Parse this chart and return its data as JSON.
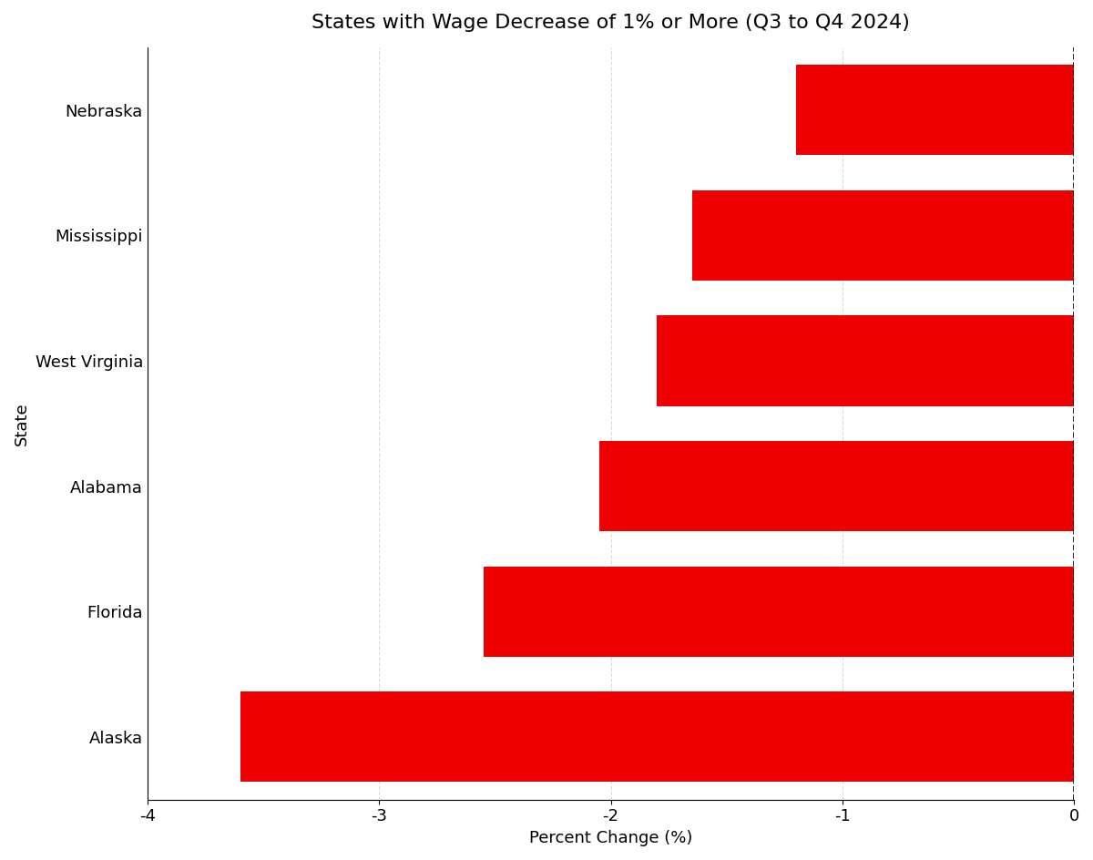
{
  "title": "States with Wage Decrease of 1% or More (Q3 to Q4 2024)",
  "states": [
    "Alaska",
    "Florida",
    "Alabama",
    "West Virginia",
    "Mississippi",
    "Nebraska"
  ],
  "values": [
    -3.6,
    -2.55,
    -2.05,
    -1.8,
    -1.65,
    -1.2
  ],
  "bar_color": "#ee0000",
  "xlabel": "Percent Change (%)",
  "ylabel": "State",
  "xlim": [
    -4,
    0
  ],
  "xticks": [
    -4,
    -3,
    -2,
    -1,
    0
  ],
  "background_color": "#ffffff",
  "title_fontsize": 16,
  "label_fontsize": 13,
  "tick_fontsize": 13
}
